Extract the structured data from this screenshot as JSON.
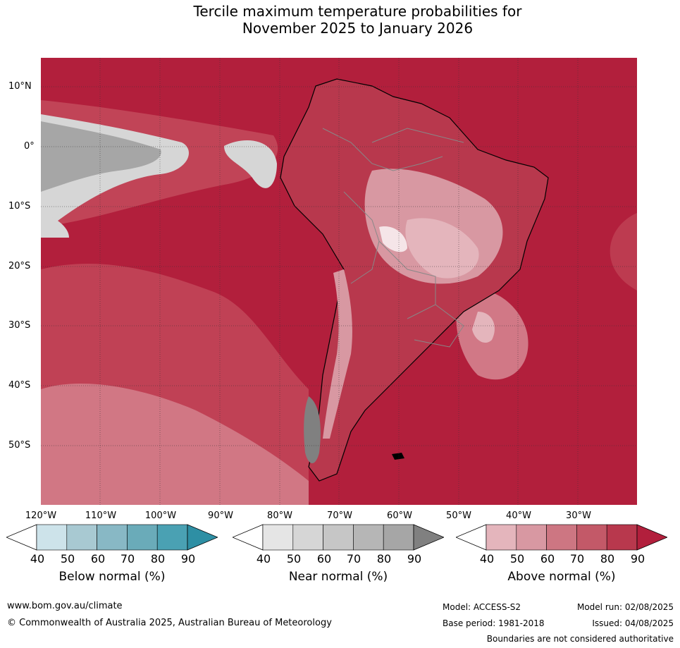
{
  "title": {
    "line1": "Tercile maximum temperature probabilities for",
    "line2": "November 2025 to January 2026"
  },
  "map": {
    "lat_labels": [
      "10°N",
      "0°",
      "10°S",
      "20°S",
      "30°S",
      "40°S",
      "50°S"
    ],
    "lon_labels": [
      "120°W",
      "110°W",
      "100°W",
      "90°W",
      "80°W",
      "70°W",
      "60°W",
      "50°W",
      "40°W",
      "30°W"
    ],
    "colors": {
      "ocean_deep": "#b21f3c",
      "ocean_mid": "#c44e5e",
      "land_light": "#d88f99",
      "near_grey": "#a6a6a6",
      "near_light": "#d6d6d6",
      "coast": "#000000",
      "border": "#888888"
    }
  },
  "colorbars": [
    {
      "name": "below",
      "title": "Below normal (%)",
      "ticks": [
        "40",
        "50",
        "60",
        "70",
        "80",
        "90"
      ],
      "colors": [
        "#cde3ea",
        "#a8c9d2",
        "#88b8c5",
        "#6aabb9",
        "#4aa1b3",
        "#2e8fa4"
      ]
    },
    {
      "name": "near",
      "title": "Near normal (%)",
      "ticks": [
        "40",
        "50",
        "60",
        "70",
        "80",
        "90"
      ],
      "colors": [
        "#e5e5e5",
        "#d6d6d6",
        "#c6c6c6",
        "#b6b6b6",
        "#a6a6a6",
        "#808080"
      ]
    },
    {
      "name": "above",
      "title": "Above normal (%)",
      "ticks": [
        "40",
        "50",
        "60",
        "70",
        "80",
        "90"
      ],
      "colors": [
        "#e4b5bc",
        "#d898a2",
        "#cd7682",
        "#c35968",
        "#b8384d",
        "#b21f3c"
      ]
    }
  ],
  "footer": {
    "website": "www.bom.gov.au/climate",
    "copyright": "© Commonwealth of Australia 2025, Australian Bureau of Meteorology",
    "model": "Model: ACCESS-S2",
    "base_period": "Base period: 1981-2018",
    "model_run": "Model run: 02/08/2025",
    "issued": "Issued: 04/08/2025",
    "disclaimer": "Boundaries are not considered authoritative"
  }
}
